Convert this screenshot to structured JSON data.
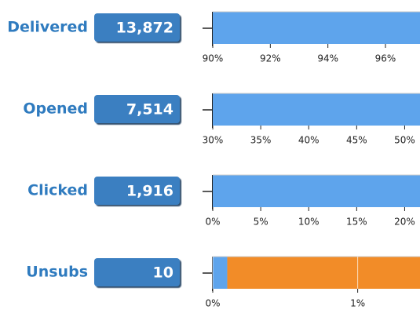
{
  "chart_data": [
    {
      "type": "bar",
      "title": "Delivered",
      "badge": {
        "value": 13872,
        "label": "13,872"
      },
      "series": [
        {
          "color": "#5ea4ec",
          "values": [
            97.2
          ]
        }
      ],
      "xlim": [
        90,
        97.2
      ],
      "xticks": [
        {
          "value": 90,
          "label": "90%"
        },
        {
          "value": 92,
          "label": "92%"
        },
        {
          "value": 94,
          "label": "94%"
        },
        {
          "value": 96,
          "label": "96%"
        }
      ]
    },
    {
      "type": "bar",
      "title": "Opened",
      "badge": {
        "value": 7514,
        "label": "7,514"
      },
      "series": [
        {
          "color": "#5ea4ec",
          "values": [
            51.6
          ]
        }
      ],
      "xlim": [
        30,
        51.6
      ],
      "xticks": [
        {
          "value": 30,
          "label": "30%"
        },
        {
          "value": 35,
          "label": "35%"
        },
        {
          "value": 40,
          "label": "40%"
        },
        {
          "value": 45,
          "label": "45%"
        },
        {
          "value": 50,
          "label": "50%"
        }
      ]
    },
    {
      "type": "bar",
      "title": "Clicked",
      "badge": {
        "value": 1916,
        "label": "1,916"
      },
      "series": [
        {
          "color": "#5ea4ec",
          "values": [
            21.6
          ]
        }
      ],
      "xlim": [
        0,
        21.6
      ],
      "xticks": [
        {
          "value": 0,
          "label": "0%"
        },
        {
          "value": 5,
          "label": "5%"
        },
        {
          "value": 10,
          "label": "10%"
        },
        {
          "value": 15,
          "label": "15%"
        },
        {
          "value": 20,
          "label": "20%"
        }
      ]
    },
    {
      "type": "bar",
      "title": "Unsubs",
      "badge": {
        "value": 10,
        "label": "10"
      },
      "series": [
        {
          "color": "#5ea4ec",
          "values": [
            0.1
          ]
        },
        {
          "color": "#f28c28",
          "values": [
            1.33
          ]
        }
      ],
      "xlim": [
        0,
        1.43
      ],
      "grid": true,
      "xticks": [
        {
          "value": 0,
          "label": "0%"
        },
        {
          "value": 1,
          "label": "1%"
        }
      ]
    }
  ]
}
